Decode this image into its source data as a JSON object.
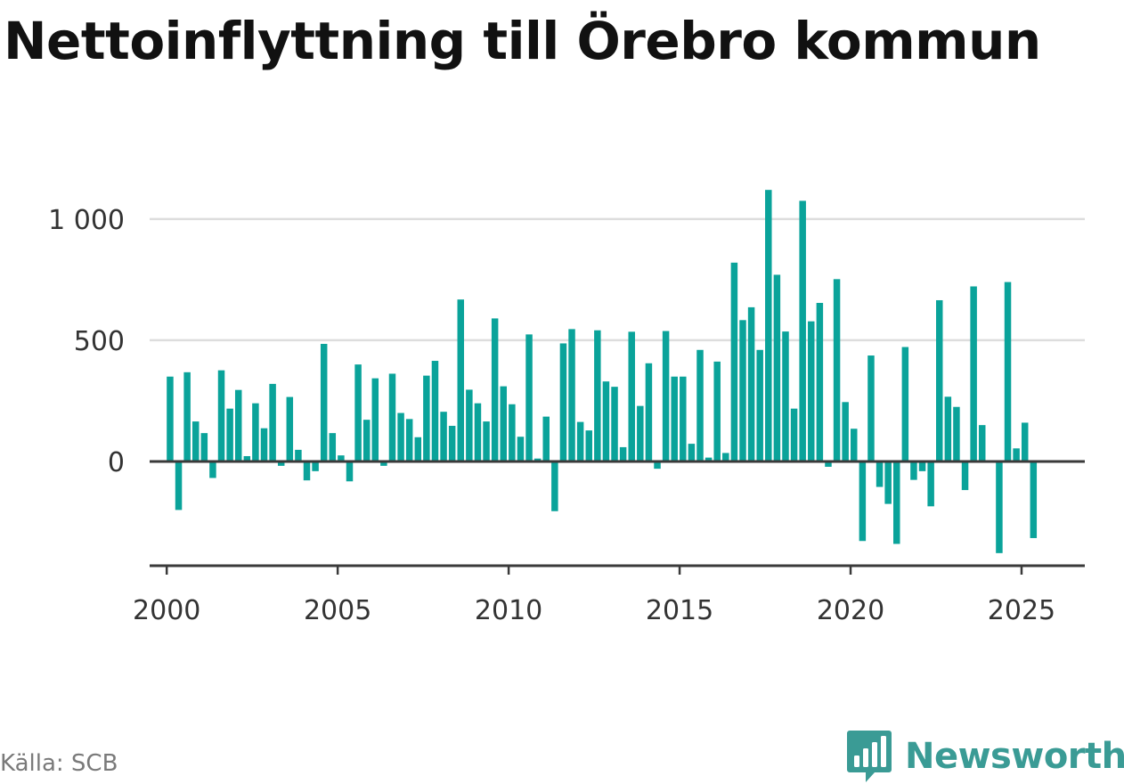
{
  "title": "Nettoinflyttning till Örebro kommun",
  "source": "Källa: SCB",
  "brand": {
    "name": "Newsworthy",
    "icon": "bar-chart-speech-bubble-icon",
    "color": "#3a9b95"
  },
  "chart_data": {
    "type": "bar",
    "x_type": "quarter",
    "series": [
      {
        "color": "#0aa39a",
        "values": [
          {
            "x": "2000 Q1",
            "y": 350
          },
          {
            "x": "2000 Q2",
            "y": -200
          },
          {
            "x": "2000 Q3",
            "y": 368
          },
          {
            "x": "2000 Q4",
            "y": 165
          },
          {
            "x": "2001 Q1",
            "y": 117
          },
          {
            "x": "2001 Q2",
            "y": -68
          },
          {
            "x": "2001 Q3",
            "y": 376
          },
          {
            "x": "2001 Q4",
            "y": 218
          },
          {
            "x": "2002 Q1",
            "y": 295
          },
          {
            "x": "2002 Q2",
            "y": 22
          },
          {
            "x": "2002 Q3",
            "y": 240
          },
          {
            "x": "2002 Q4",
            "y": 137
          },
          {
            "x": "2003 Q1",
            "y": 320
          },
          {
            "x": "2003 Q2",
            "y": -18
          },
          {
            "x": "2003 Q3",
            "y": 266
          },
          {
            "x": "2003 Q4",
            "y": 48
          },
          {
            "x": "2004 Q1",
            "y": -78
          },
          {
            "x": "2004 Q2",
            "y": -40
          },
          {
            "x": "2004 Q3",
            "y": 485
          },
          {
            "x": "2004 Q4",
            "y": 117
          },
          {
            "x": "2005 Q1",
            "y": 25
          },
          {
            "x": "2005 Q2",
            "y": -82
          },
          {
            "x": "2005 Q3",
            "y": 400
          },
          {
            "x": "2005 Q4",
            "y": 172
          },
          {
            "x": "2006 Q1",
            "y": 343
          },
          {
            "x": "2006 Q2",
            "y": -18
          },
          {
            "x": "2006 Q3",
            "y": 362
          },
          {
            "x": "2006 Q4",
            "y": 200
          },
          {
            "x": "2007 Q1",
            "y": 175
          },
          {
            "x": "2007 Q2",
            "y": 100
          },
          {
            "x": "2007 Q3",
            "y": 354
          },
          {
            "x": "2007 Q4",
            "y": 415
          },
          {
            "x": "2008 Q1",
            "y": 205
          },
          {
            "x": "2008 Q2",
            "y": 147
          },
          {
            "x": "2008 Q3",
            "y": 668
          },
          {
            "x": "2008 Q4",
            "y": 296
          },
          {
            "x": "2009 Q1",
            "y": 240
          },
          {
            "x": "2009 Q2",
            "y": 165
          },
          {
            "x": "2009 Q3",
            "y": 590
          },
          {
            "x": "2009 Q4",
            "y": 310
          },
          {
            "x": "2010 Q1",
            "y": 236
          },
          {
            "x": "2010 Q2",
            "y": 102
          },
          {
            "x": "2010 Q3",
            "y": 524
          },
          {
            "x": "2010 Q4",
            "y": 12
          },
          {
            "x": "2011 Q1",
            "y": 185
          },
          {
            "x": "2011 Q2",
            "y": -205
          },
          {
            "x": "2011 Q3",
            "y": 487
          },
          {
            "x": "2011 Q4",
            "y": 546
          },
          {
            "x": "2012 Q1",
            "y": 163
          },
          {
            "x": "2012 Q2",
            "y": 128
          },
          {
            "x": "2012 Q3",
            "y": 541
          },
          {
            "x": "2012 Q4",
            "y": 330
          },
          {
            "x": "2013 Q1",
            "y": 308
          },
          {
            "x": "2013 Q2",
            "y": 59
          },
          {
            "x": "2013 Q3",
            "y": 535
          },
          {
            "x": "2013 Q4",
            "y": 229
          },
          {
            "x": "2014 Q1",
            "y": 405
          },
          {
            "x": "2014 Q2",
            "y": -30
          },
          {
            "x": "2014 Q3",
            "y": 538
          },
          {
            "x": "2014 Q4",
            "y": 350
          },
          {
            "x": "2015 Q1",
            "y": 350
          },
          {
            "x": "2015 Q2",
            "y": 73
          },
          {
            "x": "2015 Q3",
            "y": 460
          },
          {
            "x": "2015 Q4",
            "y": 16
          },
          {
            "x": "2016 Q1",
            "y": 412
          },
          {
            "x": "2016 Q2",
            "y": 35
          },
          {
            "x": "2016 Q3",
            "y": 820
          },
          {
            "x": "2016 Q4",
            "y": 583
          },
          {
            "x": "2017 Q1",
            "y": 636
          },
          {
            "x": "2017 Q2",
            "y": 460
          },
          {
            "x": "2017 Q3",
            "y": 1120
          },
          {
            "x": "2017 Q4",
            "y": 770
          },
          {
            "x": "2018 Q1",
            "y": 536
          },
          {
            "x": "2018 Q2",
            "y": 218
          },
          {
            "x": "2018 Q3",
            "y": 1075
          },
          {
            "x": "2018 Q4",
            "y": 578
          },
          {
            "x": "2019 Q1",
            "y": 654
          },
          {
            "x": "2019 Q2",
            "y": -22
          },
          {
            "x": "2019 Q3",
            "y": 752
          },
          {
            "x": "2019 Q4",
            "y": 245
          },
          {
            "x": "2020 Q1",
            "y": 135
          },
          {
            "x": "2020 Q2",
            "y": -328
          },
          {
            "x": "2020 Q3",
            "y": 437
          },
          {
            "x": "2020 Q4",
            "y": -105
          },
          {
            "x": "2021 Q1",
            "y": -175
          },
          {
            "x": "2021 Q2",
            "y": -340
          },
          {
            "x": "2021 Q3",
            "y": 472
          },
          {
            "x": "2021 Q4",
            "y": -76
          },
          {
            "x": "2022 Q1",
            "y": -40
          },
          {
            "x": "2022 Q2",
            "y": -185
          },
          {
            "x": "2022 Q3",
            "y": 665
          },
          {
            "x": "2022 Q4",
            "y": 267
          },
          {
            "x": "2023 Q1",
            "y": 225
          },
          {
            "x": "2023 Q2",
            "y": -118
          },
          {
            "x": "2023 Q3",
            "y": 722
          },
          {
            "x": "2023 Q4",
            "y": 150
          },
          {
            "x": "2024 Q1",
            "y": null
          },
          {
            "x": "2024 Q2",
            "y": -378
          },
          {
            "x": "2024 Q3",
            "y": 740
          },
          {
            "x": "2024 Q4",
            "y": 54
          },
          {
            "x": "2025 Q1",
            "y": 160
          },
          {
            "x": "2025 Q2",
            "y": -316
          }
        ]
      }
    ],
    "x_ticks": [
      {
        "label": "2000",
        "value": 2000
      },
      {
        "label": "2005",
        "value": 2005
      },
      {
        "label": "2010",
        "value": 2010
      },
      {
        "label": "2015",
        "value": 2015
      },
      {
        "label": "2020",
        "value": 2020
      },
      {
        "label": "2025",
        "value": 2025
      }
    ],
    "y_ticks": [
      {
        "label": "0",
        "value": 0
      },
      {
        "label": "500",
        "value": 500
      },
      {
        "label": "1 000",
        "value": 1000
      }
    ],
    "xlim": [
      1999.5,
      2026.85
    ],
    "ylim": [
      -430,
      1150
    ],
    "grid": true,
    "xlabel": "",
    "ylabel": ""
  }
}
